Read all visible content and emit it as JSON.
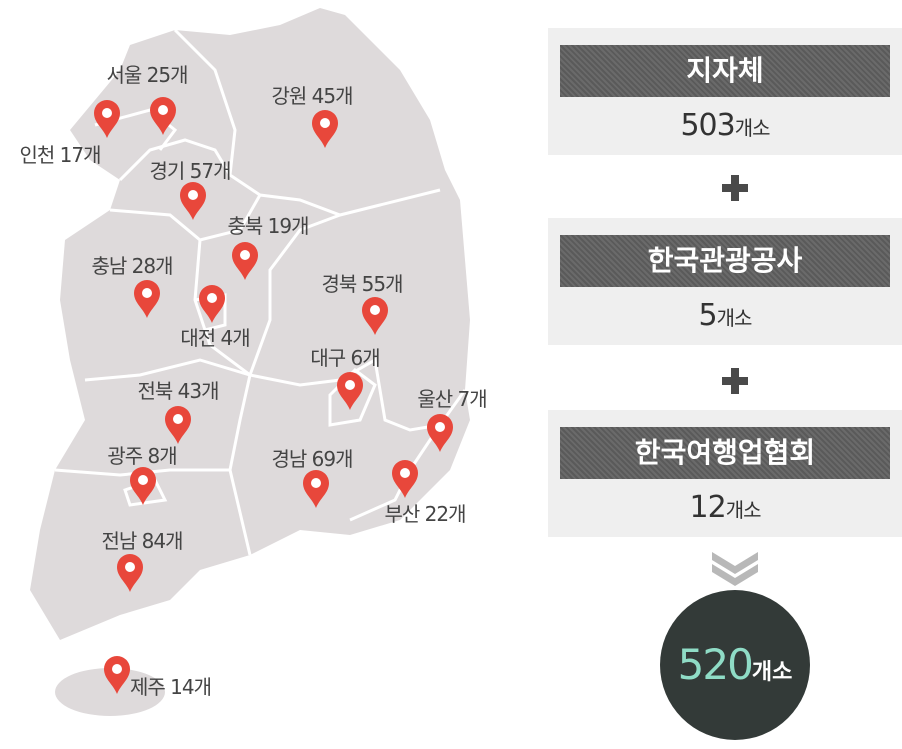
{
  "regions": [
    "서울 25개",
    "인천 17개",
    "강원 45개",
    "경기 57개",
    "충북 19개",
    "충남 28개",
    "대전 4개",
    "경북 55개",
    "대구 6개",
    "울산 7개",
    "전북 43개",
    "광주 8개",
    "경남 69개",
    "부산 22개",
    "전남 84개",
    "제주 14개"
  ],
  "sources": [
    {
      "title": "지자체",
      "count": "503",
      "unit": "개소"
    },
    {
      "title": "한국관광공사",
      "count": "5",
      "unit": "개소"
    },
    {
      "title": "한국여행업협회",
      "count": "12",
      "unit": "개소"
    }
  ],
  "total": {
    "count": "520",
    "unit": "개소"
  }
}
